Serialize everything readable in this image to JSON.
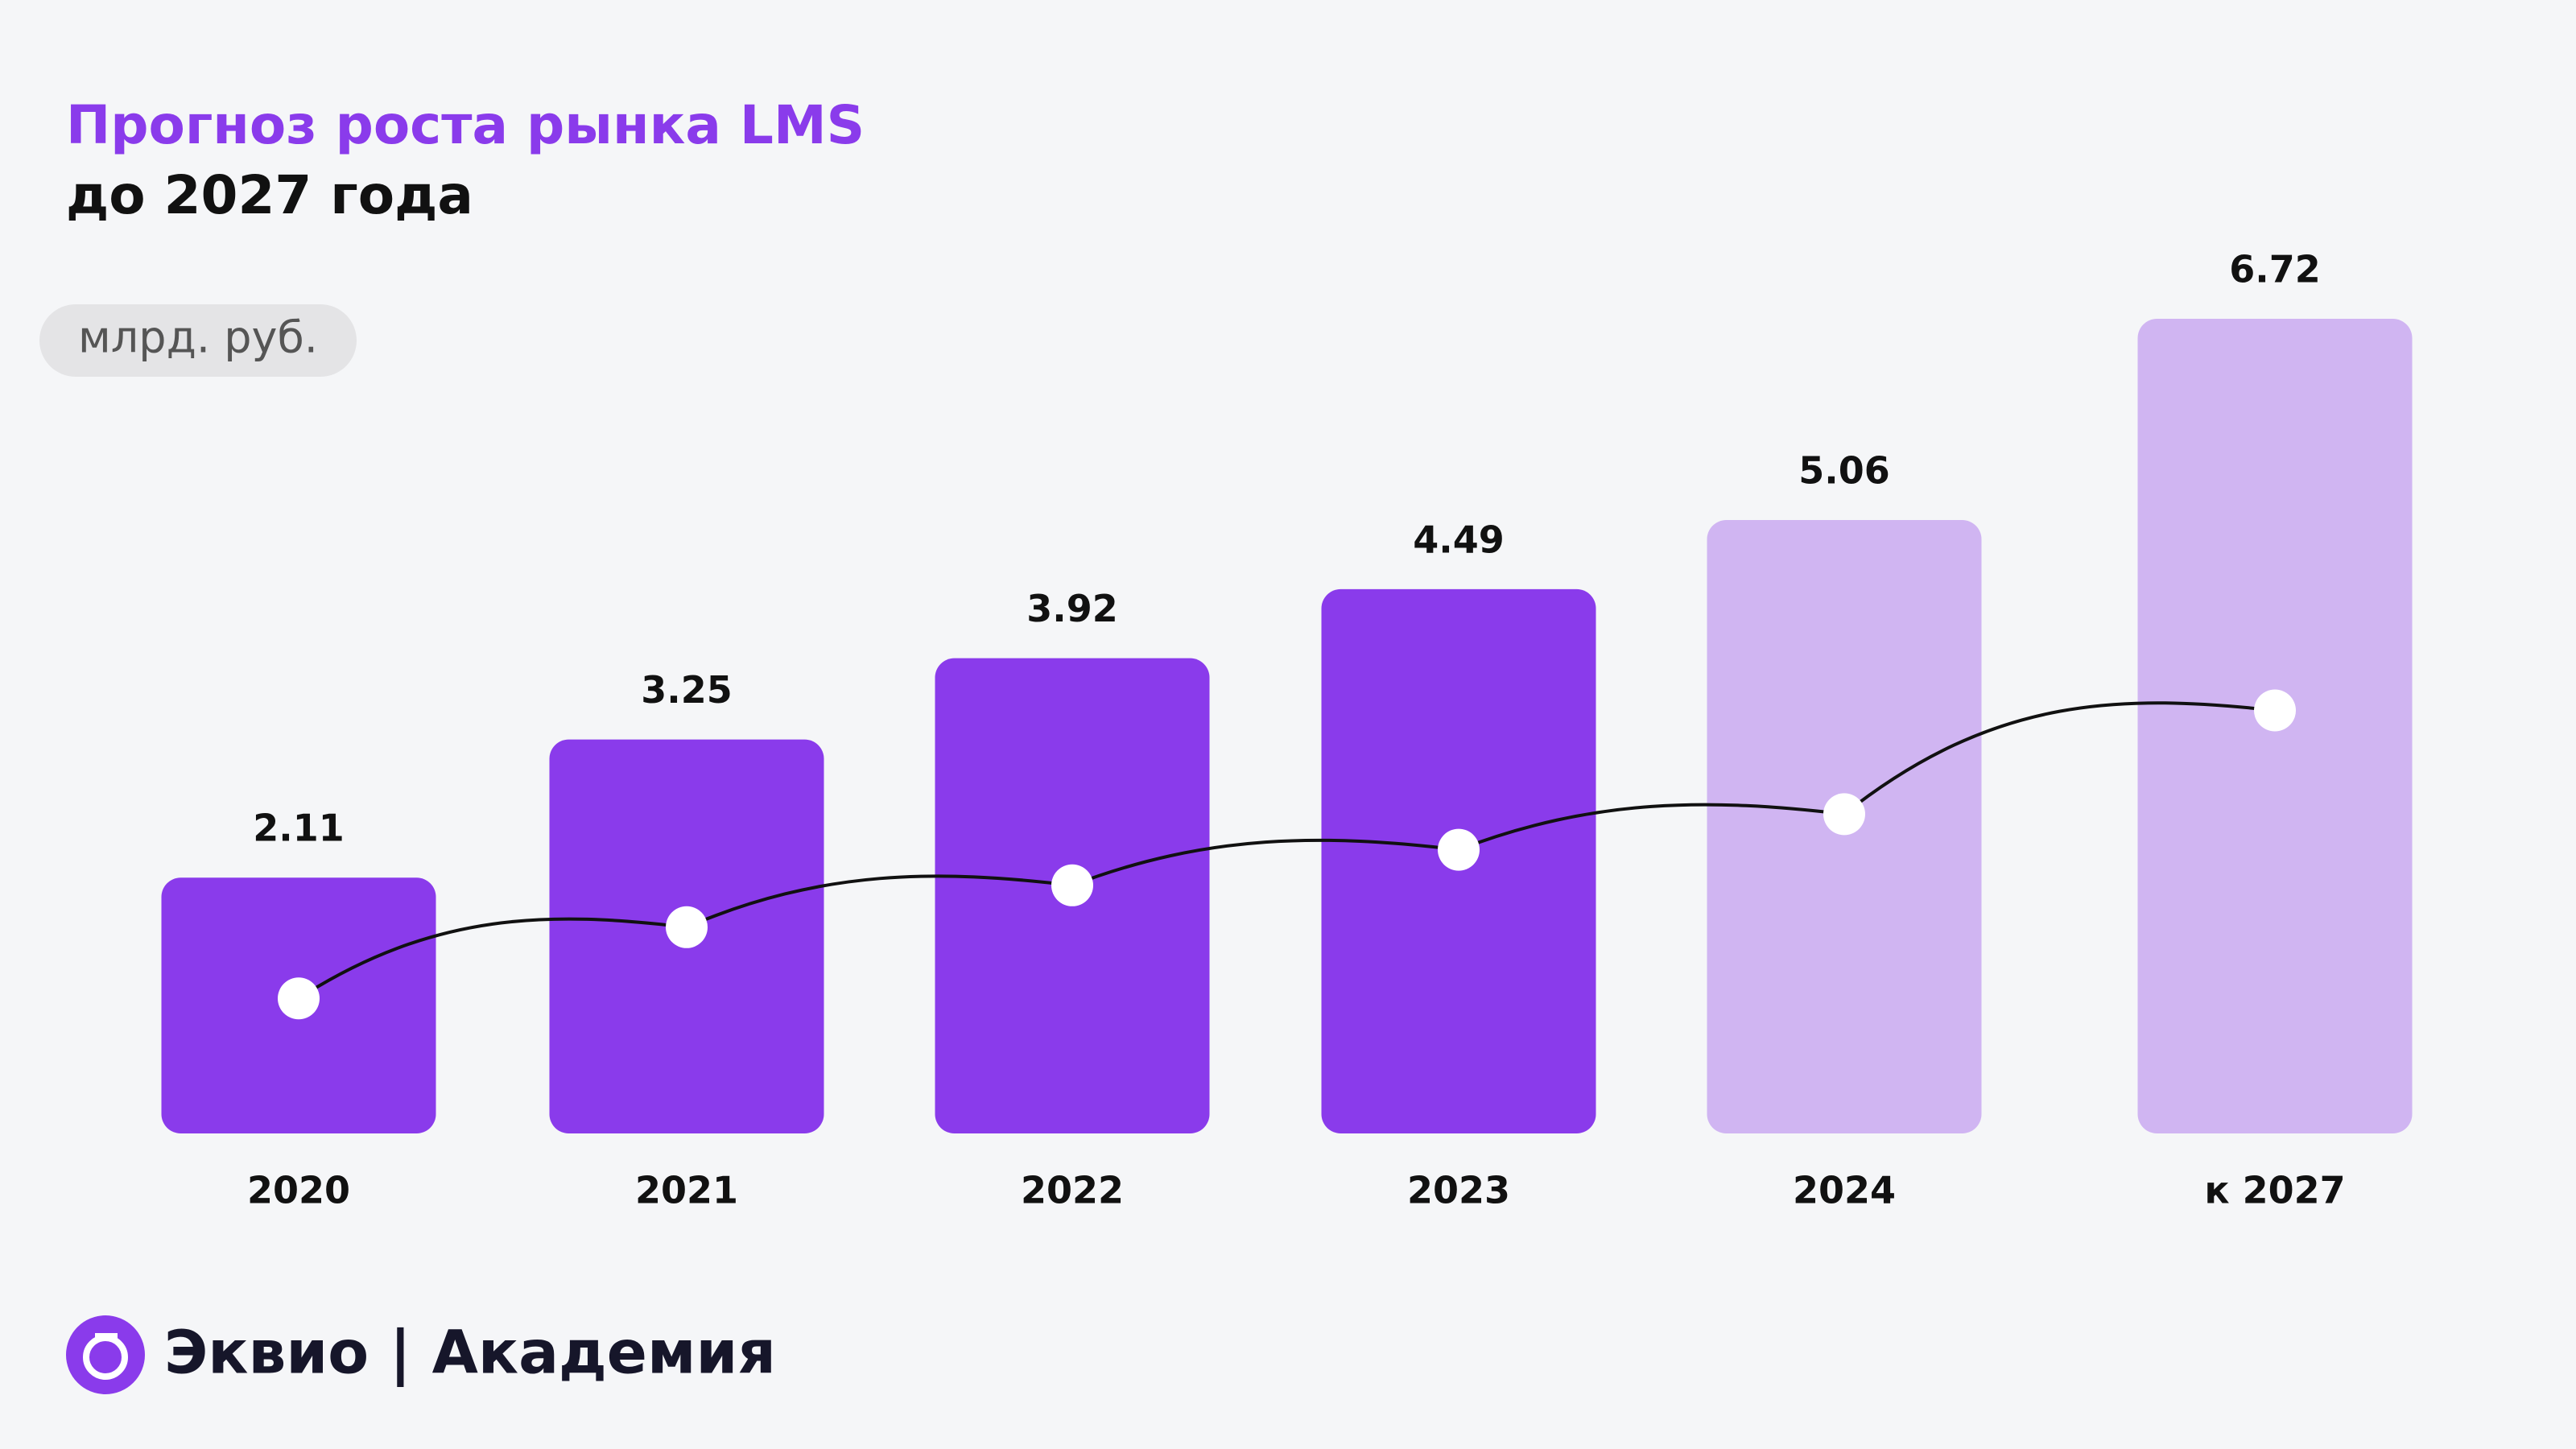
{
  "chart_data": {
    "type": "bar",
    "title": "Прогноз роста рынка LMS",
    "subtitle": "до 2027 года",
    "unit_label": "млрд. руб.",
    "categories": [
      "2020",
      "2021",
      "2022",
      "2023",
      "2024",
      "к 2027"
    ],
    "values": [
      2.11,
      3.25,
      3.92,
      4.49,
      5.06,
      6.72
    ],
    "colors": [
      "#8a3beb",
      "#8a3beb",
      "#8a3beb",
      "#8a3beb",
      "#d0b5f2",
      "#d0b5f2"
    ],
    "line_color": "#111111"
  },
  "footer": {
    "brand": "Эквио | Академия"
  }
}
